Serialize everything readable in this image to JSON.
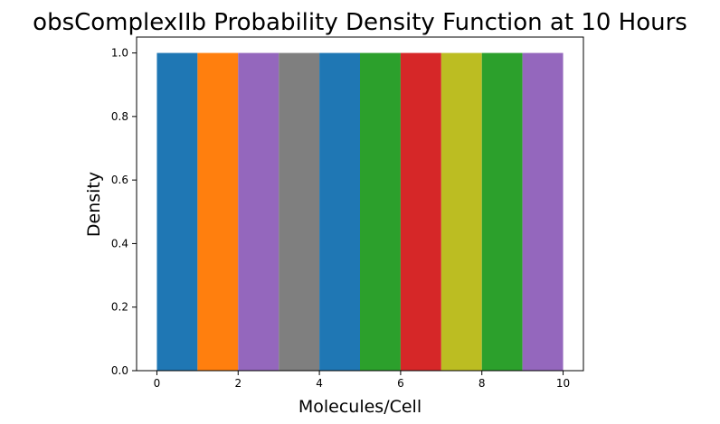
{
  "chart_data": {
    "type": "bar",
    "title": "obsComplexIIb Probability Density Function at 10 Hours",
    "xlabel": "Molecules/Cell",
    "ylabel": "Density",
    "xlim": [
      -0.5,
      10.5
    ],
    "ylim": [
      0,
      1.05
    ],
    "xticks": [
      0,
      2,
      4,
      6,
      8,
      10
    ],
    "xtick_labels": [
      "0",
      "2",
      "4",
      "6",
      "8",
      "10"
    ],
    "yticks": [
      0.0,
      0.2,
      0.4,
      0.6,
      0.8,
      1.0
    ],
    "ytick_labels": [
      "0.0",
      "0.2",
      "0.4",
      "0.6",
      "0.8",
      "1.0"
    ],
    "grid": false,
    "bars": [
      {
        "x_start": 0,
        "x_end": 1,
        "value": 1.0,
        "color": "#1f77b4"
      },
      {
        "x_start": 1,
        "x_end": 2,
        "value": 1.0,
        "color": "#ff7f0e"
      },
      {
        "x_start": 2,
        "x_end": 3,
        "value": 1.0,
        "color": "#9467bd"
      },
      {
        "x_start": 3,
        "x_end": 4,
        "value": 1.0,
        "color": "#7f7f7f"
      },
      {
        "x_start": 4,
        "x_end": 5,
        "value": 1.0,
        "color": "#1f77b4"
      },
      {
        "x_start": 5,
        "x_end": 6,
        "value": 1.0,
        "color": "#2ca02c"
      },
      {
        "x_start": 6,
        "x_end": 7,
        "value": 1.0,
        "color": "#d62728"
      },
      {
        "x_start": 7,
        "x_end": 8,
        "value": 1.0,
        "color": "#bcbd22"
      },
      {
        "x_start": 8,
        "x_end": 9,
        "value": 1.0,
        "color": "#2ca02c"
      },
      {
        "x_start": 9,
        "x_end": 10,
        "value": 1.0,
        "color": "#9467bd"
      }
    ]
  }
}
